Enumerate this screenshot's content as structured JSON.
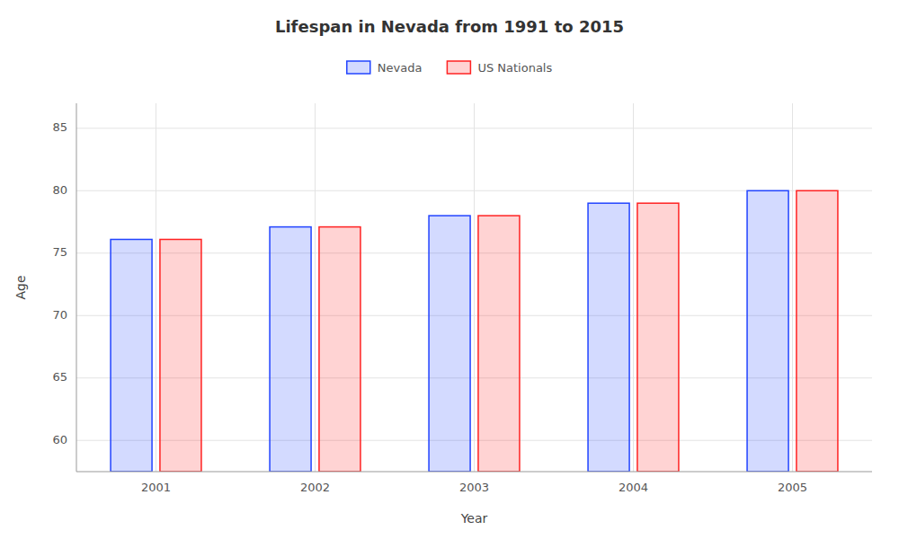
{
  "chart_data": {
    "type": "bar",
    "title": "Lifespan in Nevada from 1991 to 2015",
    "x_label": "Year",
    "y_label": "Age",
    "categories": [
      "2001",
      "2002",
      "2003",
      "2004",
      "2005"
    ],
    "series": [
      {
        "name": "Nevada",
        "color": "#2244ff",
        "values": [
          76.1,
          77.1,
          78.0,
          79.0,
          80.0
        ]
      },
      {
        "name": "US Nationals",
        "color": "#ff2222",
        "values": [
          76.1,
          77.1,
          78.0,
          79.0,
          80.0
        ]
      }
    ],
    "ylim": [
      57.5,
      87
    ],
    "yticks": [
      60,
      65,
      70,
      75,
      80,
      85
    ],
    "grid": true,
    "legend": "top"
  }
}
